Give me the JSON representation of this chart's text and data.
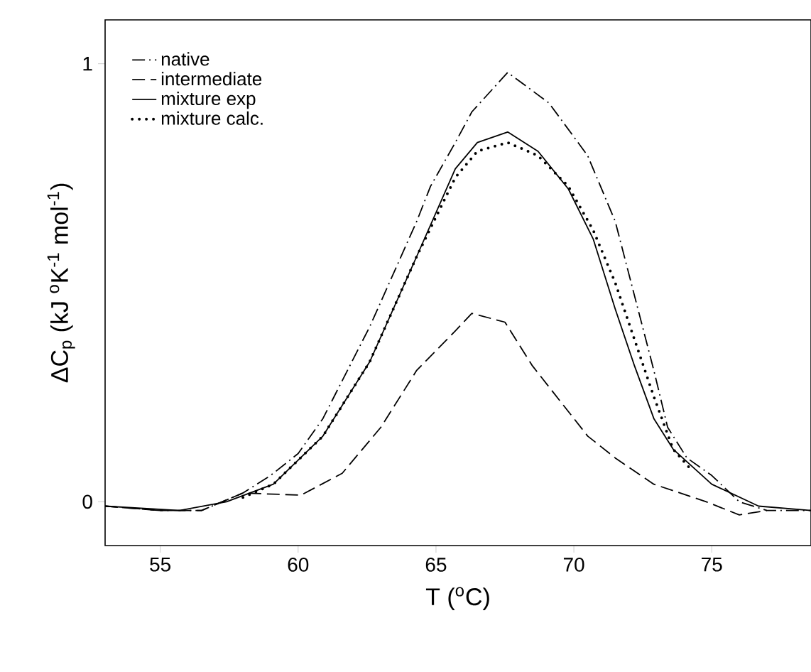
{
  "chart_data": {
    "type": "line",
    "xlabel": "T ($^{o}$C)",
    "ylabel": "ΔC$_{p}$ (kJ $^{o}$K$^{-1}$ mol$^{-1}$)",
    "xlim": [
      53,
      78.6
    ],
    "ylim": [
      -0.1,
      1.1
    ],
    "xticks": [
      55,
      60,
      65,
      70,
      75
    ],
    "yticks": [
      0,
      1
    ],
    "grid": false,
    "legend": "top left",
    "series": [
      {
        "name": "native",
        "color": "#000000",
        "line_style": "dashdot",
        "x": [
          53,
          55,
          56.5,
          58,
          59,
          60,
          60.9,
          62.6,
          64.3,
          64.8,
          65.7,
          66.3,
          67.6,
          69.1,
          70.5,
          71.5,
          72.2,
          72.9,
          73.4,
          74.1,
          75,
          76,
          77,
          78.6
        ],
        "values": [
          -0.01,
          -0.02,
          -0.02,
          0.02,
          0.06,
          0.11,
          0.19,
          0.4,
          0.64,
          0.72,
          0.82,
          0.89,
          0.98,
          0.91,
          0.79,
          0.64,
          0.47,
          0.3,
          0.17,
          0.1,
          0.06,
          0.0,
          -0.02,
          -0.02
        ]
      },
      {
        "name": "intermediate",
        "color": "#000000",
        "line_style": "dashed",
        "x": [
          53,
          55,
          56.5,
          58,
          60.1,
          61.6,
          63,
          64.3,
          65.7,
          66.3,
          67.5,
          68.5,
          69.5,
          70.5,
          71.5,
          72.9,
          74.8,
          76,
          77
        ],
        "values": [
          -0.01,
          -0.02,
          -0.02,
          0.02,
          0.015,
          0.065,
          0.17,
          0.3,
          0.39,
          0.43,
          0.41,
          0.31,
          0.23,
          0.15,
          0.1,
          0.04,
          0.0,
          -0.03,
          -0.02
        ]
      },
      {
        "name": "mixture exp",
        "color": "#000000",
        "line_style": "solid",
        "x": [
          53,
          55.7,
          57.4,
          59.1,
          60.9,
          62.6,
          64.3,
          65.7,
          66.5,
          67.6,
          68.7,
          69.8,
          70.7,
          71.5,
          72.2,
          72.9,
          73.6,
          75,
          76.7,
          78.6
        ],
        "values": [
          -0.01,
          -0.02,
          0.0,
          0.04,
          0.15,
          0.32,
          0.56,
          0.76,
          0.82,
          0.844,
          0.8,
          0.714,
          0.6,
          0.44,
          0.31,
          0.19,
          0.12,
          0.04,
          -0.01,
          -0.02
        ]
      },
      {
        "name": "mixture calc.",
        "color": "#000000",
        "line_style": "dotted",
        "x": [
          58,
          59.1,
          60.9,
          62.6,
          64.3,
          65.7,
          66.5,
          67.6,
          68.7,
          69.8,
          70.7,
          71.5,
          72.2,
          72.9,
          73.6,
          74.3
        ],
        "values": [
          0.01,
          0.04,
          0.15,
          0.32,
          0.56,
          0.74,
          0.8,
          0.82,
          0.79,
          0.72,
          0.62,
          0.5,
          0.37,
          0.24,
          0.12,
          0.07
        ]
      }
    ]
  }
}
